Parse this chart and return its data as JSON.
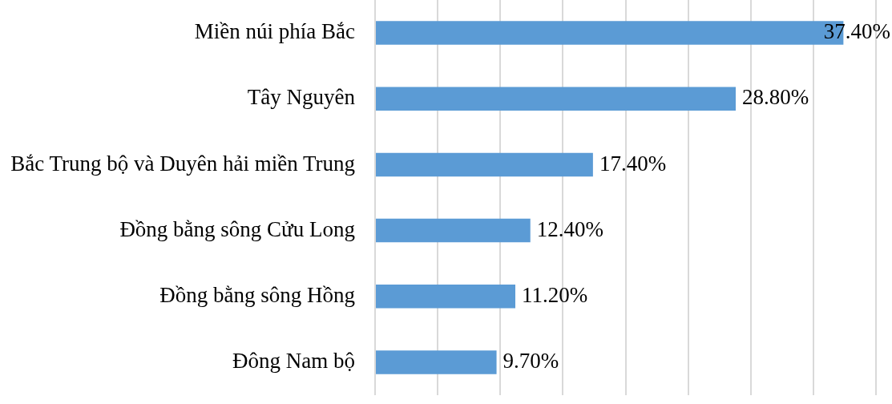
{
  "chart_data": {
    "type": "bar",
    "orientation": "horizontal",
    "categories": [
      "Miền núi phía Bắc",
      "Tây Nguyên",
      "Bắc Trung bộ và Duyên hải miền Trung",
      "Đồng bằng sông Cửu Long",
      "Đồng bằng sông Hồng",
      "Đông Nam bộ"
    ],
    "values": [
      37.4,
      28.8,
      17.4,
      12.4,
      11.2,
      9.7
    ],
    "color": "#5b9bd5",
    "value_labels": [
      "37.40%",
      "28.80%",
      "17.40%",
      "12.40%",
      "11.20%",
      "9.70%"
    ],
    "xlim": [
      0,
      40
    ],
    "xticks": [
      {
        "value": 0,
        "label": null
      },
      {
        "value": 5,
        "label": null
      },
      {
        "value": 10,
        "label": null
      },
      {
        "value": 15,
        "label": null
      },
      {
        "value": 20,
        "label": null
      },
      {
        "value": 25,
        "label": null
      },
      {
        "value": 30,
        "label": null
      },
      {
        "value": 35,
        "label": null
      },
      {
        "value": 40,
        "label": null
      }
    ],
    "grid": "x",
    "tick_labels": "y"
  }
}
